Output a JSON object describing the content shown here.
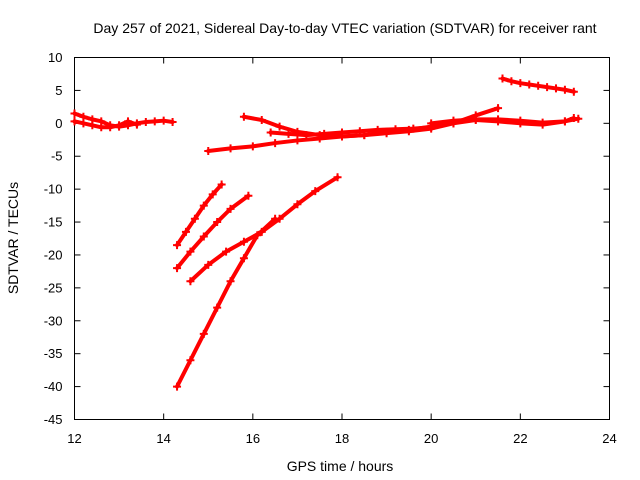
{
  "chart_data": {
    "type": "scatter",
    "title": "Day 257 of 2021, Sidereal Day-to-day VTEC variation (SDTVAR) for receiver rant",
    "xlabel": "GPS time / hours",
    "ylabel": "SDTVAR / TECUs",
    "xlim": [
      12,
      24
    ],
    "ylim": [
      -45,
      10
    ],
    "xticks": [
      12,
      14,
      16,
      18,
      20,
      22,
      24
    ],
    "yticks": [
      10,
      5,
      0,
      -5,
      -10,
      -15,
      -20,
      -25,
      -30,
      -35,
      -40,
      -45
    ],
    "grid": false,
    "marker": "plus",
    "color": "#ff0000",
    "series": [
      {
        "x": [
          12.0,
          12.2,
          12.4,
          12.6,
          12.8,
          13.0,
          13.2,
          13.4,
          13.6,
          13.8,
          14.0,
          14.2
        ],
        "y": [
          1.5,
          1.0,
          0.6,
          0.3,
          -0.3,
          -0.5,
          -0.3,
          0.0,
          0.2,
          0.3,
          0.4,
          0.2
        ]
      },
      {
        "x": [
          12.0,
          12.2,
          12.4,
          12.6,
          12.8,
          13.0,
          13.2,
          13.4
        ],
        "y": [
          0.3,
          0.0,
          -0.3,
          -0.6,
          -0.6,
          -0.3,
          0.3,
          -0.2
        ]
      },
      {
        "x": [
          14.3,
          14.5,
          14.7,
          14.9,
          15.1,
          15.3
        ],
        "y": [
          -18.5,
          -16.5,
          -14.5,
          -12.5,
          -10.8,
          -9.3
        ]
      },
      {
        "x": [
          14.3,
          14.6,
          14.9,
          15.2,
          15.5,
          15.9
        ],
        "y": [
          -22.0,
          -19.5,
          -17.2,
          -15.0,
          -13.0,
          -11.0
        ]
      },
      {
        "x": [
          14.6,
          15.0,
          15.4,
          15.8,
          16.2,
          16.6,
          17.0,
          17.4,
          17.9
        ],
        "y": [
          -24.0,
          -21.5,
          -19.5,
          -18.0,
          -16.5,
          -14.5,
          -12.3,
          -10.3,
          -8.2
        ]
      },
      {
        "x": [
          14.3,
          14.6,
          14.9,
          15.2,
          15.5,
          15.8,
          16.1,
          16.5
        ],
        "y": [
          -40.0,
          -36.0,
          -32.0,
          -28.0,
          -24.0,
          -20.5,
          -17.0,
          -14.5
        ]
      },
      {
        "x": [
          15.0,
          15.5,
          16.0,
          16.5,
          17.0,
          17.5,
          18.0,
          18.5,
          19.0,
          19.5,
          20.0,
          20.5,
          21.0,
          21.5
        ],
        "y": [
          -4.2,
          -3.8,
          -3.5,
          -3.0,
          -2.6,
          -2.3,
          -2.0,
          -1.8,
          -1.5,
          -1.2,
          -0.8,
          0.0,
          1.2,
          2.3
        ]
      },
      {
        "x": [
          15.8,
          16.2,
          16.6,
          17.0,
          17.5,
          18.0,
          18.5,
          19.0,
          19.5,
          20.0,
          20.5,
          21.0,
          21.5,
          22.0,
          22.5,
          23.0,
          23.2
        ],
        "y": [
          1.0,
          0.5,
          -0.5,
          -1.3,
          -1.8,
          -2.0,
          -1.8,
          -1.3,
          -1.0,
          -0.5,
          0.0,
          0.5,
          0.3,
          0.0,
          -0.2,
          0.3,
          0.8
        ]
      },
      {
        "x": [
          16.4,
          16.8,
          17.2,
          17.6,
          18.0,
          18.4,
          18.8,
          19.2,
          19.6,
          20.0
        ],
        "y": [
          -1.4,
          -1.6,
          -1.8,
          -1.6,
          -1.4,
          -1.2,
          -1.0,
          -0.9,
          -0.8,
          -0.6
        ]
      },
      {
        "x": [
          20.0,
          20.5,
          21.0,
          21.5,
          22.0,
          22.5,
          23.0,
          23.3
        ],
        "y": [
          0.0,
          0.4,
          0.6,
          0.6,
          0.4,
          0.1,
          0.3,
          0.7
        ]
      },
      {
        "x": [
          21.6,
          21.8,
          22.0,
          22.2,
          22.4,
          22.6,
          22.8,
          23.0,
          23.2
        ],
        "y": [
          6.8,
          6.4,
          6.1,
          5.9,
          5.7,
          5.5,
          5.3,
          5.1,
          4.8
        ]
      }
    ]
  }
}
